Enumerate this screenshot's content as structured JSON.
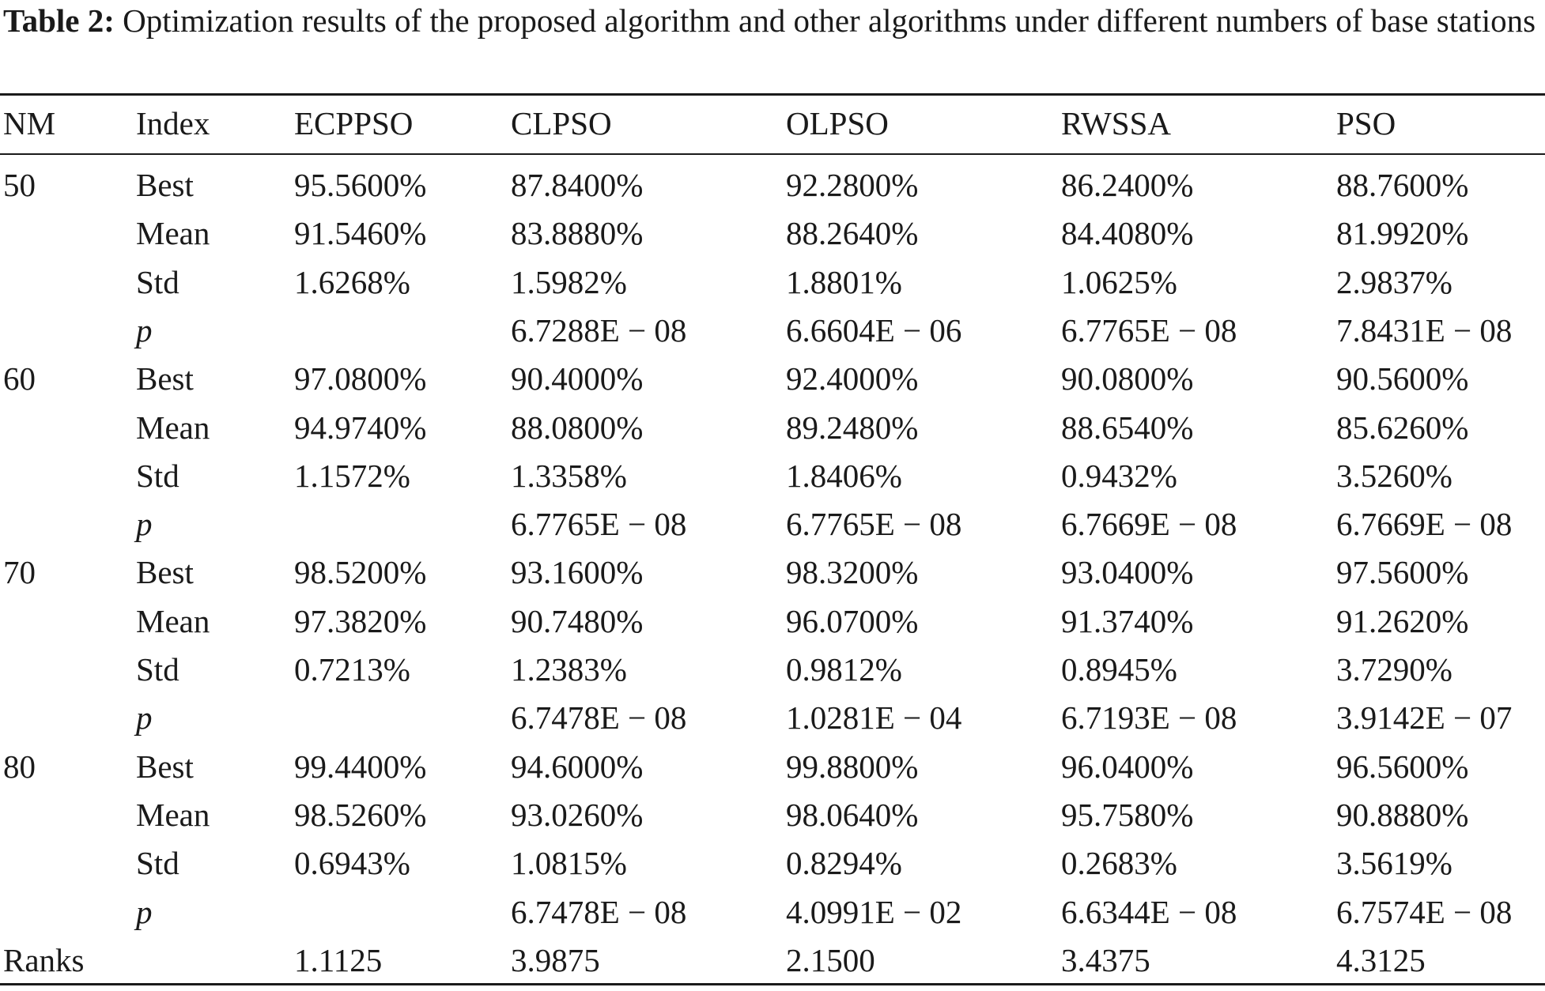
{
  "caption": {
    "label": "Table 2:",
    "text": " Optimization results of the proposed algorithm and other algorithms under different numbers of base stations"
  },
  "header": [
    "NM",
    "Index",
    "ECPPSO",
    "CLPSO",
    "OLPSO",
    "RWSSA",
    "PSO"
  ],
  "rows": [
    [
      "50",
      "Best",
      "95.5600%",
      "87.8400%",
      "92.2800%",
      "86.2400%",
      "88.7600%"
    ],
    [
      "",
      "Mean",
      "91.5460%",
      "83.8880%",
      "88.2640%",
      "84.4080%",
      "81.9920%"
    ],
    [
      "",
      "Std",
      "1.6268%",
      "1.5982%",
      "1.8801%",
      "1.0625%",
      "2.9837%"
    ],
    [
      "",
      "p",
      "",
      "6.7288E − 08",
      "6.6604E − 06",
      "6.7765E − 08",
      "7.8431E − 08"
    ],
    [
      "60",
      "Best",
      "97.0800%",
      "90.4000%",
      "92.4000%",
      "90.0800%",
      "90.5600%"
    ],
    [
      "",
      "Mean",
      "94.9740%",
      "88.0800%",
      "89.2480%",
      "88.6540%",
      "85.6260%"
    ],
    [
      "",
      "Std",
      "1.1572%",
      "1.3358%",
      "1.8406%",
      "0.9432%",
      "3.5260%"
    ],
    [
      "",
      "p",
      "",
      "6.7765E − 08",
      "6.7765E − 08",
      "6.7669E − 08",
      "6.7669E − 08"
    ],
    [
      "70",
      "Best",
      "98.5200%",
      "93.1600%",
      "98.3200%",
      "93.0400%",
      "97.5600%"
    ],
    [
      "",
      "Mean",
      "97.3820%",
      "90.7480%",
      "96.0700%",
      "91.3740%",
      "91.2620%"
    ],
    [
      "",
      "Std",
      "0.7213%",
      "1.2383%",
      "0.9812%",
      "0.8945%",
      "3.7290%"
    ],
    [
      "",
      "p",
      "",
      "6.7478E − 08",
      "1.0281E − 04",
      "6.7193E − 08",
      "3.9142E − 07"
    ],
    [
      "80",
      "Best",
      "99.4400%",
      "94.6000%",
      "99.8800%",
      "96.0400%",
      "96.5600%"
    ],
    [
      "",
      "Mean",
      "98.5260%",
      "93.0260%",
      "98.0640%",
      "95.7580%",
      "90.8880%"
    ],
    [
      "",
      "Std",
      "0.6943%",
      "1.0815%",
      "0.8294%",
      "0.2683%",
      "3.5619%"
    ],
    [
      "",
      "p",
      "",
      "6.7478E − 08",
      "4.0991E − 02",
      "6.6344E − 08",
      "6.7574E − 08"
    ]
  ],
  "ranks": [
    "Ranks",
    "",
    "1.1125",
    "3.9875",
    "2.1500",
    "3.4375",
    "4.3125"
  ]
}
